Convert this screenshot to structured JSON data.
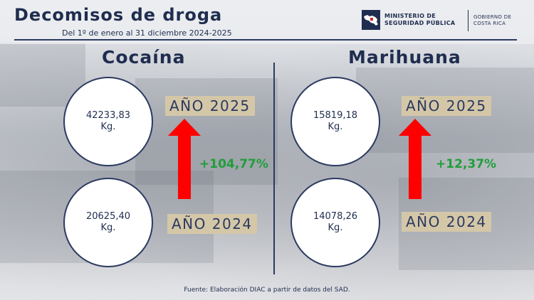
{
  "header": {
    "title": "Decomisos de droga",
    "subtitle": "Del 1º de enero al 31 diciembre 2024-2025"
  },
  "logo": {
    "ministry": "MINISTERIO DE SEGURIDAD PÚBLICA",
    "government": "GOBIERNO DE COSTA RICA",
    "icon": "costa-rica-map-icon"
  },
  "cocaine": {
    "title": "Cocaína",
    "value_2025": "42233,83",
    "value_2024": "20625,40",
    "unit": "Kg.",
    "label_2025": "AÑO 2025",
    "label_2024": "AÑO 2024",
    "change": "+104,77%"
  },
  "marijuana": {
    "title": "Marihuana",
    "value_2025": "15819,18",
    "value_2024": "14078,26",
    "unit": "Kg.",
    "label_2025": "AÑO 2025",
    "label_2024": "AÑO 2024",
    "change": "+12,37%"
  },
  "colors": {
    "navy": "#1f2d4f",
    "arrow": "#ff0000",
    "change": "#1f9e3a",
    "year_label_bg": "#d4c7a8"
  },
  "footer": {
    "source": "Fuente: Elaboración DIAC a partir de datos del SAD."
  }
}
